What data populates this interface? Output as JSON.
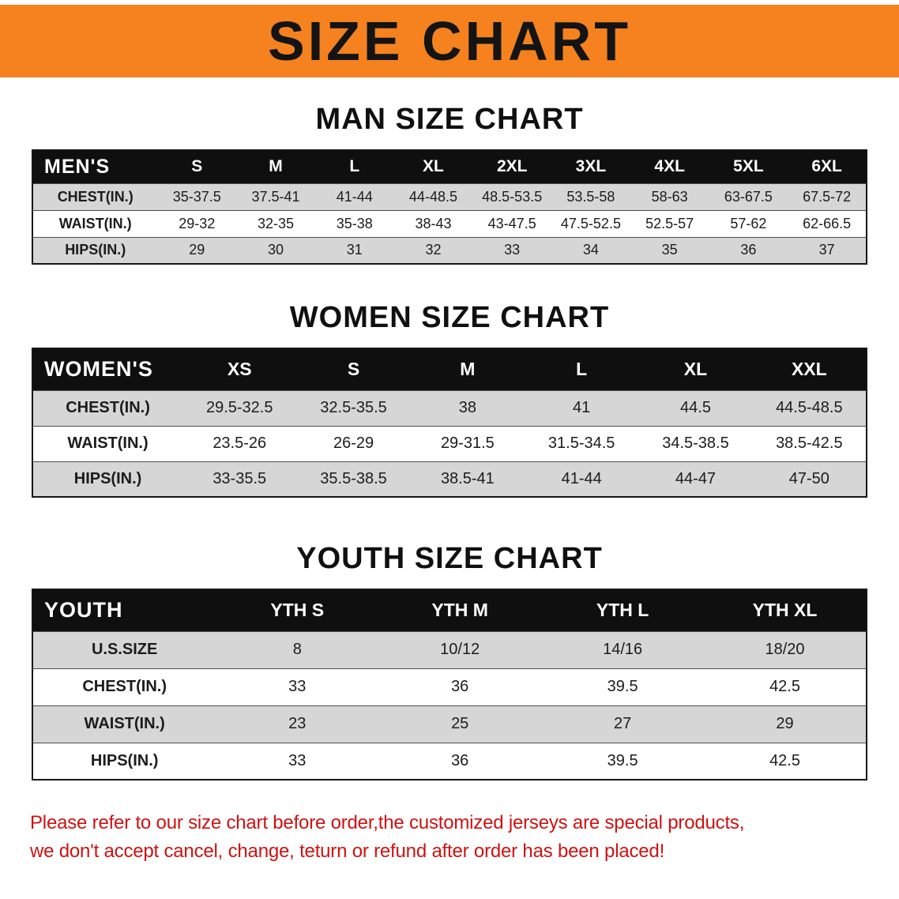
{
  "banner": {
    "title": "SIZE CHART"
  },
  "sections": [
    {
      "heading": "MAN SIZE CHART",
      "table": {
        "header": [
          "MEN'S",
          "S",
          "M",
          "L",
          "XL",
          "2XL",
          "3XL",
          "4XL",
          "5XL",
          "6XL"
        ],
        "rows": [
          [
            "CHEST(IN.)",
            "35-37.5",
            "37.5-41",
            "41-44",
            "44-48.5",
            "48.5-53.5",
            "53.5-58",
            "58-63",
            "63-67.5",
            "67.5-72"
          ],
          [
            "WAIST(IN.)",
            "29-32",
            "32-35",
            "35-38",
            "38-43",
            "43-47.5",
            "47.5-52.5",
            "52.5-57",
            "57-62",
            "62-66.5"
          ],
          [
            "HIPS(IN.)",
            "29",
            "30",
            "31",
            "32",
            "33",
            "34",
            "35",
            "36",
            "37"
          ]
        ]
      }
    },
    {
      "heading": "WOMEN SIZE CHART",
      "table": {
        "header": [
          "WOMEN'S",
          "XS",
          "S",
          "M",
          "L",
          "XL",
          "XXL"
        ],
        "rows": [
          [
            "CHEST(IN.)",
            "29.5-32.5",
            "32.5-35.5",
            "38",
            "41",
            "44.5",
            "44.5-48.5"
          ],
          [
            "WAIST(IN.)",
            "23.5-26",
            "26-29",
            "29-31.5",
            "31.5-34.5",
            "34.5-38.5",
            "38.5-42.5"
          ],
          [
            "HIPS(IN.)",
            "33-35.5",
            "35.5-38.5",
            "38.5-41",
            "41-44",
            "44-47",
            "47-50"
          ]
        ]
      }
    },
    {
      "heading": "YOUTH SIZE CHART",
      "table": {
        "header": [
          "YOUTH",
          "YTH S",
          "YTH M",
          "YTH L",
          "YTH XL"
        ],
        "rows": [
          [
            "U.S.SIZE",
            "8",
            "10/12",
            "14/16",
            "18/20"
          ],
          [
            "CHEST(IN.)",
            "33",
            "36",
            "39.5",
            "42.5"
          ],
          [
            "WAIST(IN.)",
            "23",
            "25",
            "27",
            "29"
          ],
          [
            "HIPS(IN.)",
            "33",
            "36",
            "39.5",
            "42.5"
          ]
        ]
      }
    }
  ],
  "disclaimer": {
    "line1": "Please refer to our size chart before order,the customized jerseys are special products,",
    "line2": "we don't accept cancel, change, teturn or refund after order has been placed!"
  },
  "colors": {
    "banner_bg": "#f5821f",
    "header_bg": "#0f0f0f",
    "row_alt_bg": "#d6d6d6",
    "disclaimer_color": "#cf1212"
  }
}
